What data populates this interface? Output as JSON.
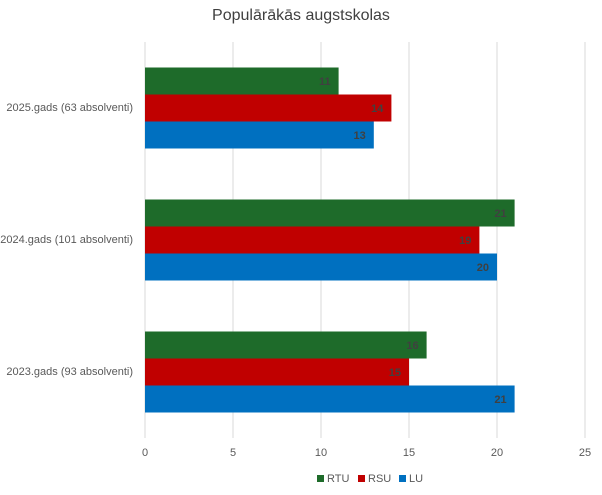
{
  "chart_data": {
    "type": "hbar",
    "title": "Populārākās augstskolas",
    "categories": [
      "2025.gads (63 absolventi)",
      "2024.gads (101 absolventi)",
      "2023.gads (93 absolventi)"
    ],
    "series": [
      {
        "name": "RTU",
        "color": "#1e6b2a",
        "values": [
          11,
          21,
          16
        ]
      },
      {
        "name": "RSU",
        "color": "#c00000",
        "values": [
          14,
          19,
          15
        ]
      },
      {
        "name": "LU",
        "color": "#0070c0",
        "values": [
          13,
          20,
          21
        ]
      }
    ],
    "xlim": [
      0,
      25
    ],
    "xticks": [
      0,
      5,
      10,
      15,
      20,
      25
    ],
    "grid": true,
    "legend": "bottom"
  }
}
